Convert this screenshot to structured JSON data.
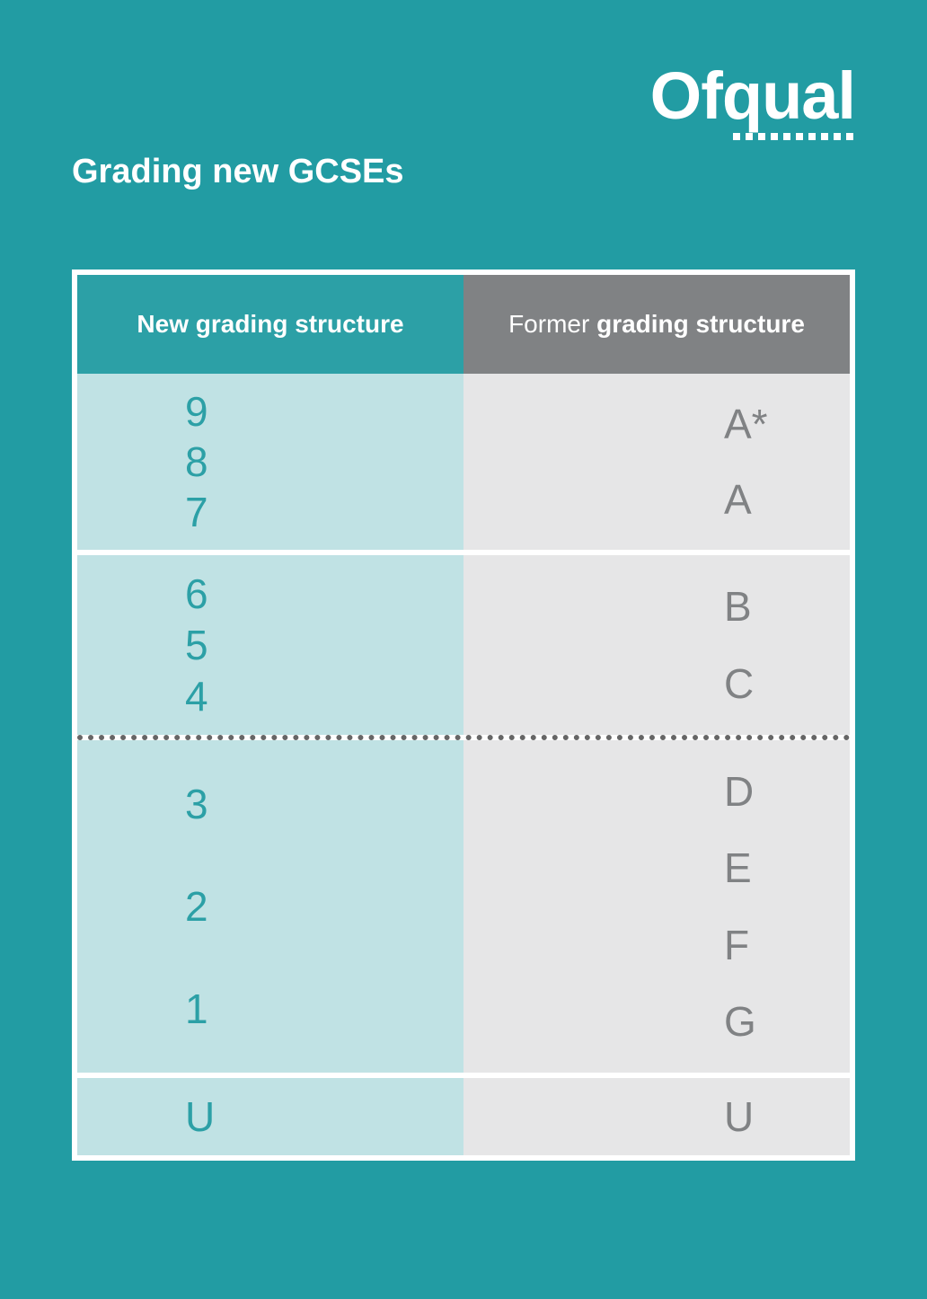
{
  "brand": {
    "name": "Ofqual"
  },
  "title": "Grading new GCSEs",
  "table": {
    "headers": {
      "left": "New grading structure",
      "right_light": "Former ",
      "right_bold": "grading structure"
    },
    "bands": [
      {
        "left": [
          "9",
          "8",
          "7"
        ],
        "right": [
          "A*",
          "A"
        ],
        "sep_after": "white"
      },
      {
        "left": [
          "6",
          "5",
          "4"
        ],
        "right": [
          "B",
          "C"
        ],
        "sep_after": "dotted"
      },
      {
        "left": [
          "3",
          "2",
          "1"
        ],
        "right": [
          "D",
          "E",
          "F",
          "G"
        ],
        "sep_after": "white"
      },
      {
        "left": [
          "U"
        ],
        "right": [
          "U"
        ],
        "sep_after": null
      }
    ]
  },
  "colors": {
    "page_bg": "#229ca3",
    "header_left_bg": "#2ca0a6",
    "header_right_bg": "#808284",
    "col_left_bg": "#c0e2e4",
    "col_right_bg": "#e6e6e7",
    "text_left": "#2ca0a6",
    "text_right": "#808284",
    "panel_border": "#ffffff"
  }
}
